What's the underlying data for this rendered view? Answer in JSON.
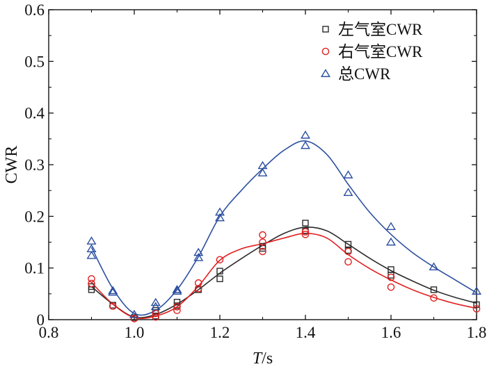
{
  "chart_data": {
    "type": "scatter",
    "title": "",
    "xlabel": {
      "italic": "T",
      "rest": "/s"
    },
    "ylabel": "CWR",
    "xlim": [
      0.8,
      1.8
    ],
    "ylim": [
      0.0,
      0.6
    ],
    "xticks": [
      "0.8",
      "1.0",
      "1.2",
      "1.4",
      "1.6",
      "1.8"
    ],
    "yticks": [
      "0",
      "0.1",
      "0.2",
      "0.3",
      "0.4",
      "0.5",
      "0.6"
    ],
    "grid": false,
    "legend_position": "top-right",
    "series": [
      {
        "name": "左气室CWR",
        "marker": "square",
        "color": "#2b2b2b",
        "points": [
          [
            0.9,
            0.058
          ],
          [
            0.9,
            0.064
          ],
          [
            0.95,
            0.028
          ],
          [
            1.0,
            0.004
          ],
          [
            1.05,
            0.007
          ],
          [
            1.05,
            0.018
          ],
          [
            1.1,
            0.027
          ],
          [
            1.1,
            0.034
          ],
          [
            1.15,
            0.058
          ],
          [
            1.2,
            0.079
          ],
          [
            1.2,
            0.094
          ],
          [
            1.3,
            0.138
          ],
          [
            1.3,
            0.142
          ],
          [
            1.4,
            0.172
          ],
          [
            1.4,
            0.187
          ],
          [
            1.5,
            0.134
          ],
          [
            1.5,
            0.146
          ],
          [
            1.6,
            0.086
          ],
          [
            1.6,
            0.097
          ],
          [
            1.7,
            0.058
          ],
          [
            1.8,
            0.029
          ]
        ],
        "fit": [
          [
            0.9,
            0.064
          ],
          [
            0.95,
            0.03
          ],
          [
            1.0,
            0.005
          ],
          [
            1.05,
            0.01
          ],
          [
            1.1,
            0.03
          ],
          [
            1.15,
            0.058
          ],
          [
            1.2,
            0.09
          ],
          [
            1.25,
            0.118
          ],
          [
            1.3,
            0.144
          ],
          [
            1.35,
            0.167
          ],
          [
            1.4,
            0.179
          ],
          [
            1.45,
            0.172
          ],
          [
            1.5,
            0.146
          ],
          [
            1.55,
            0.119
          ],
          [
            1.6,
            0.095
          ],
          [
            1.65,
            0.075
          ],
          [
            1.7,
            0.057
          ],
          [
            1.75,
            0.043
          ],
          [
            1.8,
            0.032
          ]
        ]
      },
      {
        "name": "右气室CWR",
        "marker": "circle",
        "color": "#e02020",
        "points": [
          [
            0.9,
            0.079
          ],
          [
            0.9,
            0.07
          ],
          [
            0.95,
            0.026
          ],
          [
            1.0,
            0.002
          ],
          [
            1.05,
            0.005
          ],
          [
            1.05,
            0.012
          ],
          [
            1.1,
            0.018
          ],
          [
            1.1,
            0.025
          ],
          [
            1.15,
            0.06
          ],
          [
            1.15,
            0.071
          ],
          [
            1.2,
            0.116
          ],
          [
            1.3,
            0.132
          ],
          [
            1.3,
            0.15
          ],
          [
            1.3,
            0.164
          ],
          [
            1.4,
            0.165
          ],
          [
            1.4,
            0.17
          ],
          [
            1.5,
            0.112
          ],
          [
            1.5,
            0.132
          ],
          [
            1.6,
            0.063
          ],
          [
            1.6,
            0.082
          ],
          [
            1.7,
            0.042
          ],
          [
            1.8,
            0.021
          ]
        ],
        "fit": [
          [
            0.9,
            0.072
          ],
          [
            0.95,
            0.03
          ],
          [
            1.0,
            0.004
          ],
          [
            1.05,
            0.007
          ],
          [
            1.1,
            0.025
          ],
          [
            1.15,
            0.065
          ],
          [
            1.2,
            0.115
          ],
          [
            1.25,
            0.137
          ],
          [
            1.3,
            0.147
          ],
          [
            1.35,
            0.158
          ],
          [
            1.4,
            0.167
          ],
          [
            1.45,
            0.158
          ],
          [
            1.5,
            0.126
          ],
          [
            1.55,
            0.099
          ],
          [
            1.6,
            0.077
          ],
          [
            1.65,
            0.058
          ],
          [
            1.7,
            0.043
          ],
          [
            1.75,
            0.031
          ],
          [
            1.8,
            0.022
          ]
        ]
      },
      {
        "name": "总CWR",
        "marker": "triangle",
        "color": "#2b4fa0",
        "points": [
          [
            0.9,
            0.152
          ],
          [
            0.9,
            0.137
          ],
          [
            0.9,
            0.124
          ],
          [
            0.95,
            0.056
          ],
          [
            0.95,
            0.053
          ],
          [
            1.0,
            0.01
          ],
          [
            1.05,
            0.033
          ],
          [
            1.05,
            0.025
          ],
          [
            1.1,
            0.058
          ],
          [
            1.1,
            0.055
          ],
          [
            1.15,
            0.13
          ],
          [
            1.15,
            0.12
          ],
          [
            1.2,
            0.208
          ],
          [
            1.2,
            0.197
          ],
          [
            1.3,
            0.298
          ],
          [
            1.3,
            0.284
          ],
          [
            1.4,
            0.357
          ],
          [
            1.4,
            0.337
          ],
          [
            1.5,
            0.28
          ],
          [
            1.5,
            0.246
          ],
          [
            1.6,
            0.18
          ],
          [
            1.6,
            0.15
          ],
          [
            1.7,
            0.102
          ],
          [
            1.8,
            0.055
          ]
        ],
        "fit": [
          [
            0.9,
            0.14
          ],
          [
            0.95,
            0.06
          ],
          [
            1.0,
            0.012
          ],
          [
            1.05,
            0.018
          ],
          [
            1.1,
            0.058
          ],
          [
            1.15,
            0.122
          ],
          [
            1.2,
            0.2
          ],
          [
            1.25,
            0.25
          ],
          [
            1.3,
            0.292
          ],
          [
            1.35,
            0.328
          ],
          [
            1.4,
            0.346
          ],
          [
            1.45,
            0.32
          ],
          [
            1.5,
            0.262
          ],
          [
            1.55,
            0.208
          ],
          [
            1.6,
            0.165
          ],
          [
            1.65,
            0.13
          ],
          [
            1.7,
            0.102
          ],
          [
            1.75,
            0.077
          ],
          [
            1.8,
            0.052
          ]
        ]
      }
    ]
  }
}
